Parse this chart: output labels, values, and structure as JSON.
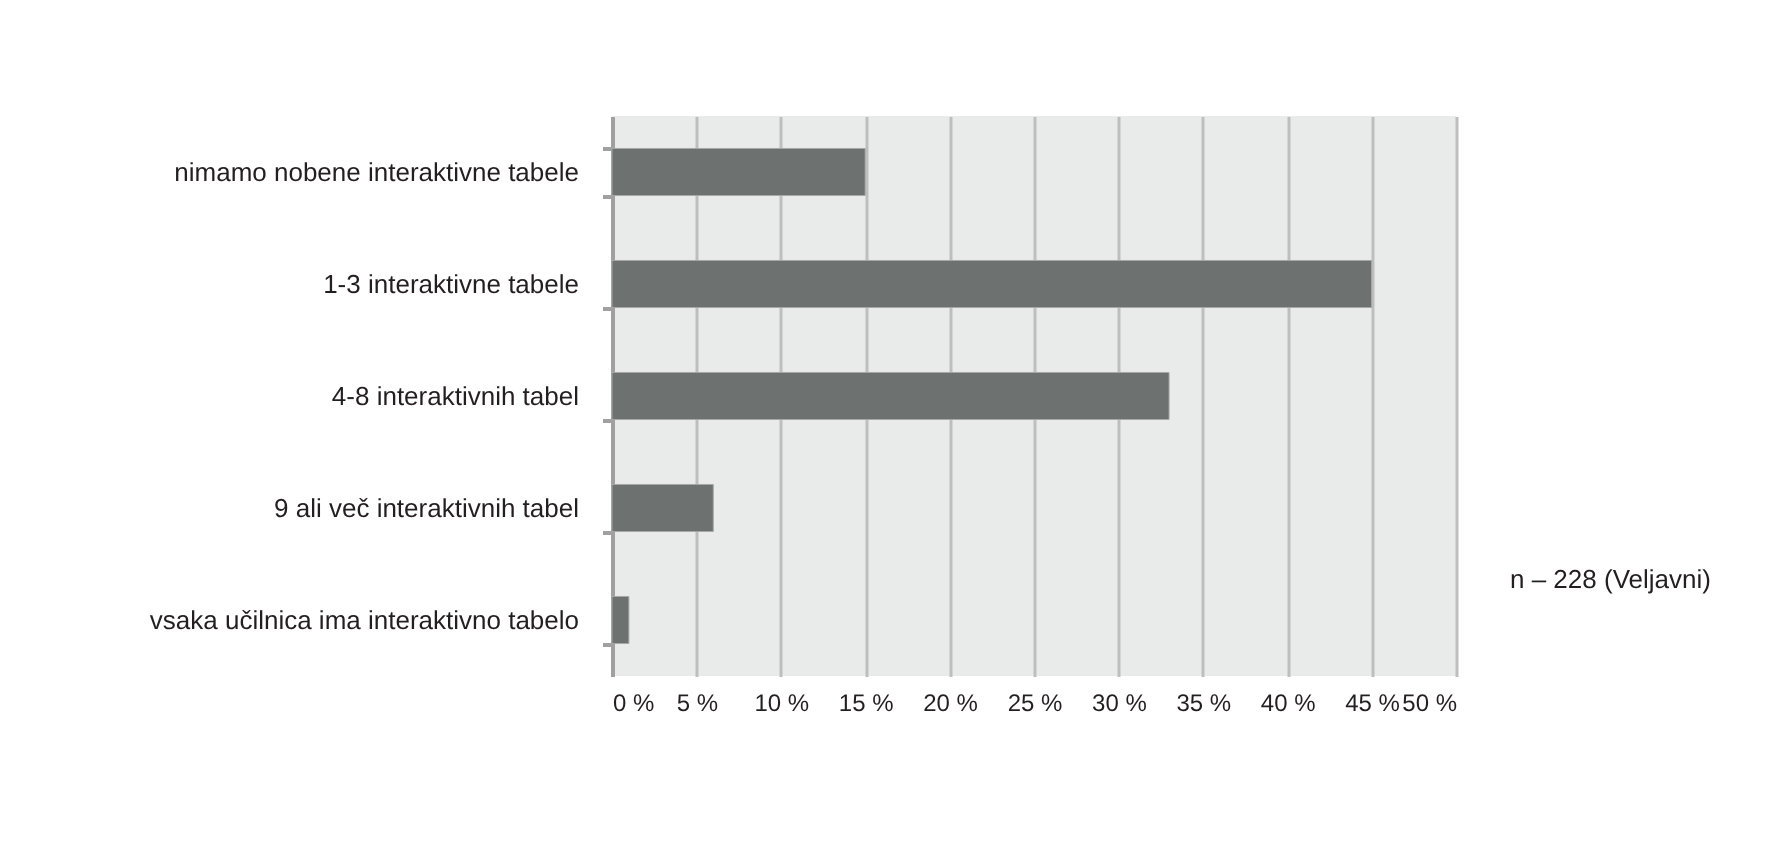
{
  "chart_data": {
    "type": "bar",
    "orientation": "horizontal",
    "categories": [
      "nimamo nobene interaktivne tabele",
      "1-3  interaktivne tabele",
      "4-8  interaktivnih tabel",
      "9 ali več  interaktivnih tabel",
      "vsaka učilnica ima interaktivno tabelo"
    ],
    "values": [
      15,
      45,
      33,
      6,
      1
    ],
    "color": "#6d7271",
    "xlim": [
      0,
      50
    ],
    "xticks": [
      {
        "value": 0,
        "label": "0 %"
      },
      {
        "value": 5,
        "label": "5 %"
      },
      {
        "value": 10,
        "label": "10 %"
      },
      {
        "value": 15,
        "label": "15 %"
      },
      {
        "value": 20,
        "label": "20 %"
      },
      {
        "value": 25,
        "label": "25 %"
      },
      {
        "value": 30,
        "label": "30 %"
      },
      {
        "value": 35,
        "label": "35 %"
      },
      {
        "value": 40,
        "label": "40 %"
      },
      {
        "value": 45,
        "label": "45 %"
      },
      {
        "value": 50,
        "label": "50 %"
      }
    ],
    "grid": "x",
    "annotations": [
      "n – 228 (Veljavni)"
    ]
  }
}
